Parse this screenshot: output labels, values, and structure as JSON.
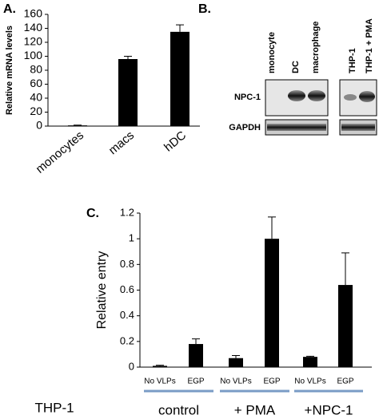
{
  "chart_data": [
    {
      "type": "bar",
      "panel": "A.",
      "y_label": "Relative mRNA levels",
      "categories": [
        "monocytes",
        "macs",
        "hDC"
      ],
      "values": [
        1,
        96,
        135
      ],
      "errors": [
        0.5,
        4,
        10
      ],
      "color": "#000000",
      "ylim": [
        0,
        160
      ],
      "yticks": [
        0,
        20,
        40,
        60,
        80,
        100,
        120,
        140,
        160
      ]
    },
    {
      "type": "bar",
      "panel": "C.",
      "y_label": "Relative entry",
      "categories": [
        "No VLPs",
        "EGP",
        "No VLPs",
        "EGP",
        "No VLPs",
        "EGP"
      ],
      "values": [
        0.01,
        0.18,
        0.07,
        1.0,
        0.08,
        0.64
      ],
      "errors": [
        0.005,
        0.04,
        0.02,
        0.17,
        0.005,
        0.25
      ],
      "color": "#000000",
      "ylim": [
        0,
        1.2
      ],
      "yticks": [
        0,
        0.2,
        0.4,
        0.6,
        0.8,
        1,
        1.2
      ],
      "groups": [
        "control",
        "+ PMA",
        "+NPC-1"
      ],
      "row_label": "THP-1"
    }
  ],
  "blot": {
    "panel": "B.",
    "columns": [
      "monocyte",
      "DC",
      "macrophage",
      "THP-1",
      "THP-1 + PMA"
    ],
    "rows": [
      "NPC-1",
      "GAPDH"
    ]
  }
}
